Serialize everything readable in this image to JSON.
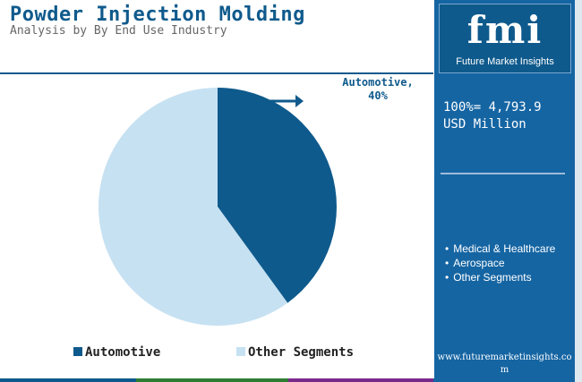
{
  "header": {
    "title": "Powder Injection Molding",
    "subtitle": "Analysis by By End Use Industry"
  },
  "chart_data": {
    "type": "pie",
    "title": "Powder Injection Molding",
    "subtitle": "Analysis by By End Use Industry",
    "labels": [
      "Automotive",
      "Other Segments"
    ],
    "values": [
      40,
      60
    ],
    "unit": "%",
    "colors": [
      "#0f5a8c",
      "#c6e1f2"
    ],
    "annotation": {
      "line1": "Automotive,",
      "line2": "40%"
    },
    "legend": "bottom"
  },
  "panel": {
    "logo_letters": "fmi",
    "logo_text": "Future Market Insights",
    "total_value": "100%= 4,793.9",
    "total_unit": "USD Million",
    "segments": [
      "Medical & Healthcare",
      "Aerospace",
      "Other Segments"
    ],
    "url": "www.futuremarketinsights.com"
  }
}
